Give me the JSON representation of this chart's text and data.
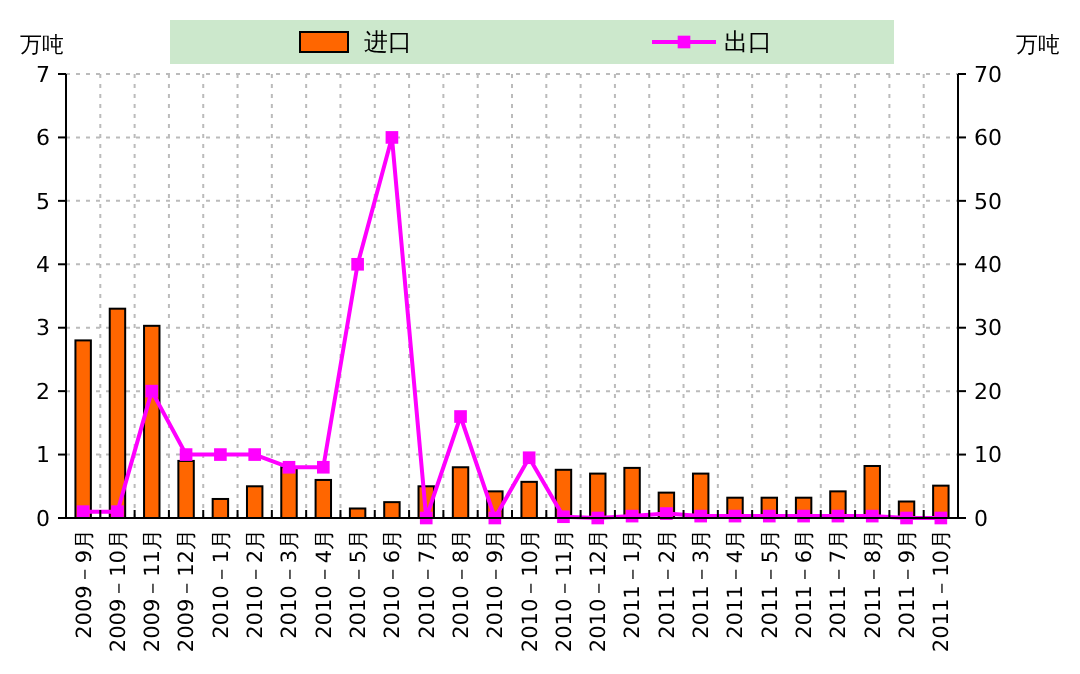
{
  "chart_data": {
    "type": "bar",
    "categories": [
      "2009－9月",
      "2009－10月",
      "2009－11月",
      "2009－12月",
      "2010－1月",
      "2010－2月",
      "2010－3月",
      "2010－4月",
      "2010－5月",
      "2010－6月",
      "2010－7月",
      "2010－8月",
      "2010－9月",
      "2010－10月",
      "2010－11月",
      "2010－12月",
      "2011－1月",
      "2011－2月",
      "2011－3月",
      "2011－4月",
      "2011－5月",
      "2011－6月",
      "2011－7月",
      "2011－8月",
      "2011－9月",
      "2011－10月"
    ],
    "series": [
      {
        "name": "进口",
        "color": "#ff6600",
        "values": [
          2.8,
          3.3,
          3.03,
          0.9,
          0.3,
          0.5,
          0.8,
          0.6,
          0.15,
          0.25,
          0.5,
          0.8,
          0.42,
          0.57,
          0.76,
          0.7,
          0.79,
          0.4,
          0.7,
          0.32,
          0.32,
          0.32,
          0.42,
          0.82,
          0.26,
          0.51
        ]
      },
      {
        "name": "出口",
        "type": "line",
        "axis": "y2",
        "color": "#ff00ff",
        "values": [
          1,
          1,
          20,
          10,
          10,
          10,
          8,
          8,
          40,
          60,
          0,
          16,
          0,
          9.5,
          0.2,
          0,
          0.3,
          0.7,
          0.3,
          0.3,
          0.3,
          0.3,
          0.3,
          0.3,
          0,
          0
        ]
      }
    ],
    "ylabel": "万吨",
    "y2label": "万吨",
    "ylim": [
      0,
      7
    ],
    "yticks": [
      0,
      1,
      2,
      3,
      4,
      5,
      6,
      7
    ],
    "y2lim": [
      0,
      70
    ],
    "y2ticks": [
      0,
      10,
      20,
      30,
      40,
      50,
      60,
      70
    ],
    "grid": true,
    "legend": "top",
    "marker": "square",
    "line_style": "solid"
  }
}
